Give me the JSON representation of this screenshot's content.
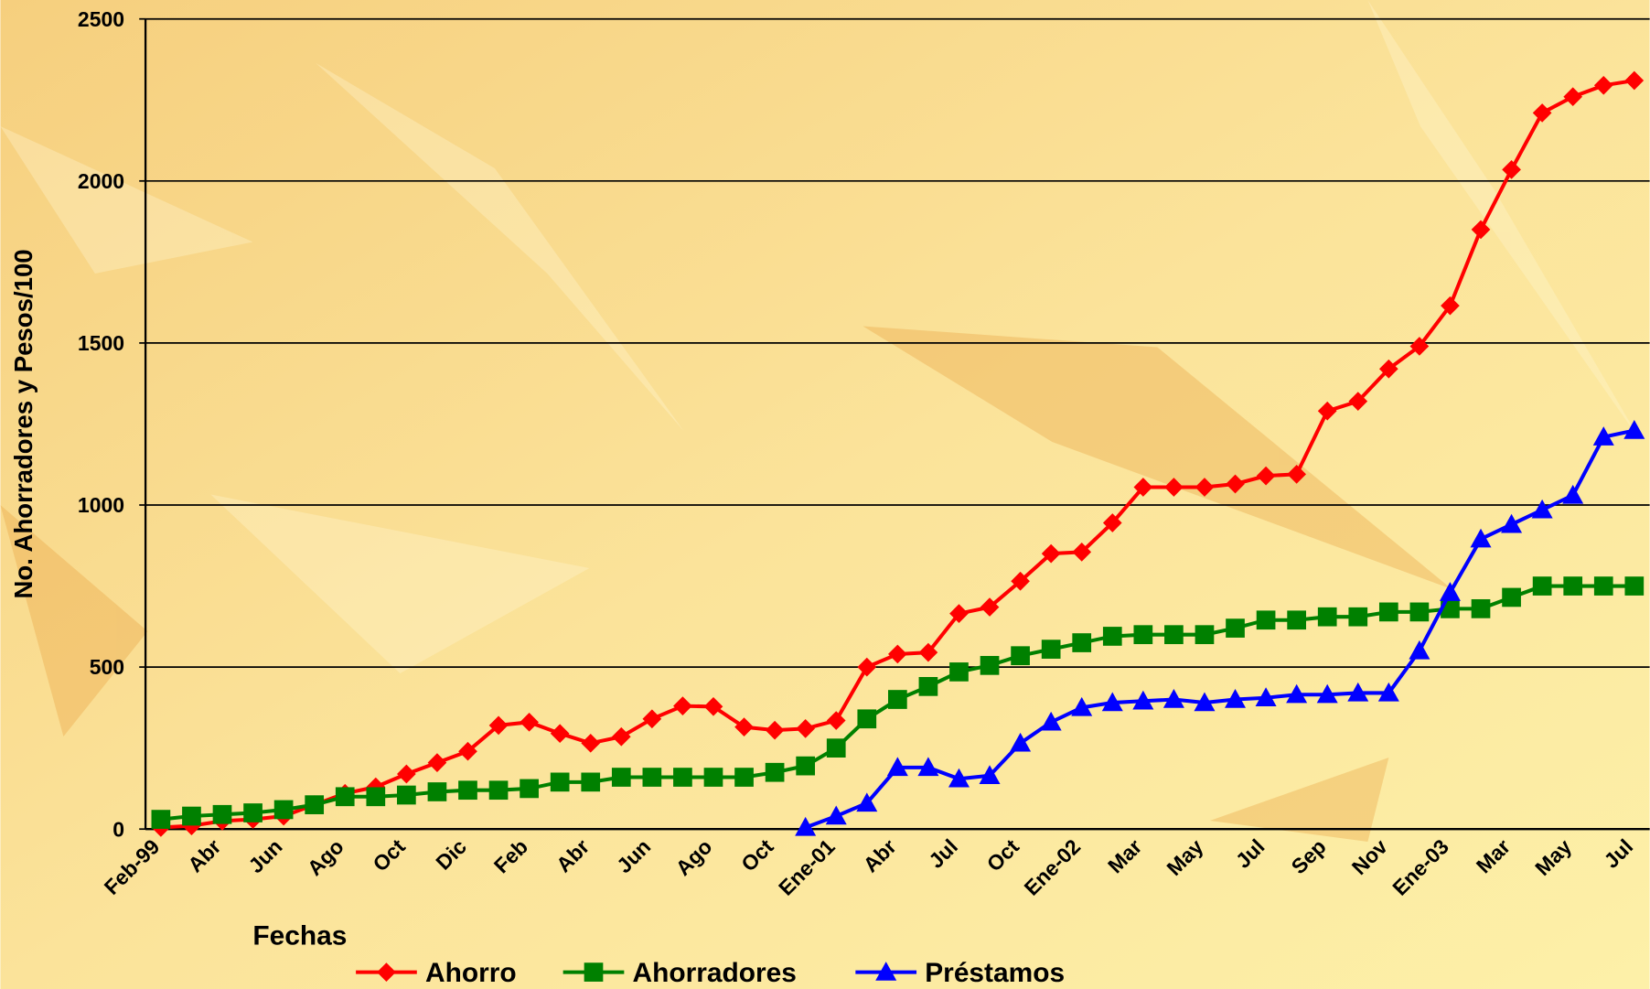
{
  "chart_data": {
    "type": "line",
    "x_label": "Fechas",
    "y_label": "No. Ahorradores y Pesos/100",
    "categories": [
      "Feb-99",
      null,
      "Abr",
      null,
      "Jun",
      null,
      "Ago",
      null,
      "Oct",
      null,
      "Dic",
      null,
      "Feb",
      null,
      "Abr",
      null,
      "Jun",
      null,
      "Ago",
      null,
      "Oct",
      null,
      "Ene-01",
      null,
      "Abr",
      null,
      "Jul",
      null,
      "Oct",
      null,
      "Ene-02",
      null,
      "Mar",
      null,
      "May",
      null,
      "Jul",
      null,
      "Sep",
      null,
      "Nov",
      null,
      "Ene-03",
      null,
      "Mar",
      null,
      "May",
      null,
      "Jul"
    ],
    "series": [
      {
        "name": "Ahorro",
        "color": "#ff0000",
        "marker": "diamond",
        "values": [
          5,
          10,
          25,
          30,
          40,
          75,
          110,
          130,
          170,
          205,
          240,
          320,
          330,
          295,
          265,
          285,
          340,
          380,
          378,
          315,
          305,
          310,
          335,
          500,
          540,
          545,
          665,
          685,
          765,
          850,
          855,
          945,
          1055,
          1055,
          1055,
          1065,
          1090,
          1095,
          1290,
          1320,
          1420,
          1490,
          1615,
          1850,
          2035,
          2210,
          2260,
          2295,
          2310
        ]
      },
      {
        "name": "Ahorradores",
        "color": "#008000",
        "marker": "square",
        "values": [
          30,
          40,
          45,
          50,
          60,
          75,
          100,
          100,
          105,
          115,
          120,
          120,
          125,
          145,
          145,
          160,
          160,
          160,
          160,
          160,
          175,
          195,
          250,
          340,
          400,
          440,
          485,
          505,
          535,
          555,
          575,
          595,
          600,
          600,
          600,
          620,
          645,
          645,
          655,
          655,
          670,
          670,
          680,
          680,
          715,
          750,
          750,
          750,
          750
        ]
      },
      {
        "name": "Préstamos",
        "color": "#0000ff",
        "marker": "triangle",
        "values": [
          null,
          null,
          null,
          null,
          null,
          null,
          null,
          null,
          null,
          null,
          null,
          null,
          null,
          null,
          null,
          null,
          null,
          null,
          null,
          null,
          null,
          5,
          40,
          80,
          190,
          190,
          155,
          165,
          265,
          330,
          375,
          390,
          395,
          400,
          390,
          400,
          405,
          415,
          415,
          420,
          420,
          550,
          730,
          895,
          940,
          985,
          1030,
          1210,
          1230
        ]
      }
    ],
    "ylim": [
      0,
      2500
    ],
    "yticks": [
      0,
      500,
      1000,
      1500,
      2000,
      2500
    ],
    "grid": true,
    "legend": "bottom"
  }
}
